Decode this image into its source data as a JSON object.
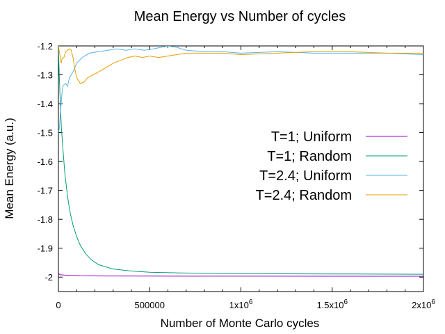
{
  "chart_data": {
    "type": "line",
    "title": "Mean Energy vs Number of cycles",
    "xlabel": "Number of Monte Carlo cycles",
    "ylabel": "Mean Energy (a.u.)",
    "xlim": [
      0,
      2000000
    ],
    "ylim": [
      -2.05,
      -1.2
    ],
    "xticks": [
      {
        "value": 0,
        "label": "0"
      },
      {
        "value": 500000,
        "label": "500000"
      },
      {
        "value": 1000000,
        "label": "1x10",
        "exp": "6"
      },
      {
        "value": 1500000,
        "label": "1.5x10",
        "exp": "6"
      },
      {
        "value": 2000000,
        "label": "2x10",
        "exp": "6"
      }
    ],
    "yticks": [
      {
        "value": -1.2,
        "label": "-1.2"
      },
      {
        "value": -1.3,
        "label": "-1.3"
      },
      {
        "value": -1.4,
        "label": "-1.4"
      },
      {
        "value": -1.5,
        "label": "-1.5"
      },
      {
        "value": -1.6,
        "label": "-1.6"
      },
      {
        "value": -1.7,
        "label": "-1.7"
      },
      {
        "value": -1.8,
        "label": "-1.8"
      },
      {
        "value": -1.9,
        "label": "-1.9"
      },
      {
        "value": -2.0,
        "label": "-2"
      }
    ],
    "grid": false,
    "legend_position": "right",
    "series": [
      {
        "name": "T=1; Uniform",
        "color": "#9400d3",
        "points": [
          [
            0,
            -1.985
          ],
          [
            5000,
            -1.99
          ],
          [
            10000,
            -1.992
          ],
          [
            30000,
            -1.993
          ],
          [
            60000,
            -1.994
          ],
          [
            120000,
            -1.9955
          ],
          [
            250000,
            -1.996
          ],
          [
            500000,
            -1.9965
          ],
          [
            1000000,
            -1.9968
          ],
          [
            1500000,
            -1.997
          ],
          [
            2000000,
            -1.997
          ]
        ]
      },
      {
        "name": "T=1; Random",
        "color": "#009e73",
        "points": [
          [
            0,
            -1.21
          ],
          [
            8000,
            -1.36
          ],
          [
            16000,
            -1.48
          ],
          [
            25000,
            -1.56
          ],
          [
            35000,
            -1.64
          ],
          [
            50000,
            -1.72
          ],
          [
            65000,
            -1.78
          ],
          [
            80000,
            -1.82
          ],
          [
            100000,
            -1.86
          ],
          [
            120000,
            -1.89
          ],
          [
            150000,
            -1.92
          ],
          [
            180000,
            -1.94
          ],
          [
            220000,
            -1.957
          ],
          [
            300000,
            -1.972
          ],
          [
            400000,
            -1.979
          ],
          [
            500000,
            -1.983
          ],
          [
            700000,
            -1.986
          ],
          [
            1000000,
            -1.988
          ],
          [
            1500000,
            -1.989
          ],
          [
            2000000,
            -1.99
          ]
        ]
      },
      {
        "name": "T=2.4; Uniform",
        "color": "#56b4e9",
        "points": [
          [
            0,
            -1.5
          ],
          [
            6000,
            -1.48
          ],
          [
            10000,
            -1.44
          ],
          [
            15000,
            -1.4
          ],
          [
            20000,
            -1.36
          ],
          [
            25000,
            -1.34
          ],
          [
            30000,
            -1.335
          ],
          [
            40000,
            -1.33
          ],
          [
            50000,
            -1.34
          ],
          [
            60000,
            -1.31
          ],
          [
            70000,
            -1.3
          ],
          [
            80000,
            -1.29
          ],
          [
            100000,
            -1.26
          ],
          [
            130000,
            -1.24
          ],
          [
            170000,
            -1.225
          ],
          [
            220000,
            -1.22
          ],
          [
            270000,
            -1.215
          ],
          [
            320000,
            -1.21
          ],
          [
            370000,
            -1.215
          ],
          [
            420000,
            -1.21
          ],
          [
            470000,
            -1.215
          ],
          [
            520000,
            -1.21
          ],
          [
            560000,
            -1.205
          ],
          [
            600000,
            -1.2
          ],
          [
            650000,
            -1.205
          ],
          [
            700000,
            -1.215
          ],
          [
            800000,
            -1.22
          ],
          [
            900000,
            -1.22
          ],
          [
            1000000,
            -1.225
          ],
          [
            1200000,
            -1.22
          ],
          [
            1400000,
            -1.225
          ],
          [
            1600000,
            -1.225
          ],
          [
            1800000,
            -1.225
          ],
          [
            2000000,
            -1.23
          ]
        ]
      },
      {
        "name": "T=2.4; Random",
        "color": "#e69f00",
        "points": [
          [
            0,
            -1.2
          ],
          [
            8000,
            -1.23
          ],
          [
            15000,
            -1.26
          ],
          [
            20000,
            -1.245
          ],
          [
            30000,
            -1.24
          ],
          [
            40000,
            -1.22
          ],
          [
            50000,
            -1.215
          ],
          [
            60000,
            -1.21
          ],
          [
            70000,
            -1.215
          ],
          [
            80000,
            -1.24
          ],
          [
            90000,
            -1.28
          ],
          [
            100000,
            -1.31
          ],
          [
            120000,
            -1.33
          ],
          [
            140000,
            -1.325
          ],
          [
            160000,
            -1.31
          ],
          [
            190000,
            -1.3
          ],
          [
            220000,
            -1.29
          ],
          [
            260000,
            -1.275
          ],
          [
            300000,
            -1.26
          ],
          [
            340000,
            -1.25
          ],
          [
            380000,
            -1.24
          ],
          [
            420000,
            -1.235
          ],
          [
            460000,
            -1.24
          ],
          [
            500000,
            -1.235
          ],
          [
            550000,
            -1.24
          ],
          [
            600000,
            -1.235
          ],
          [
            700000,
            -1.225
          ],
          [
            800000,
            -1.225
          ],
          [
            900000,
            -1.225
          ],
          [
            1000000,
            -1.23
          ],
          [
            1200000,
            -1.225
          ],
          [
            1400000,
            -1.22
          ],
          [
            1600000,
            -1.22
          ],
          [
            1800000,
            -1.225
          ],
          [
            2000000,
            -1.225
          ]
        ]
      }
    ]
  }
}
